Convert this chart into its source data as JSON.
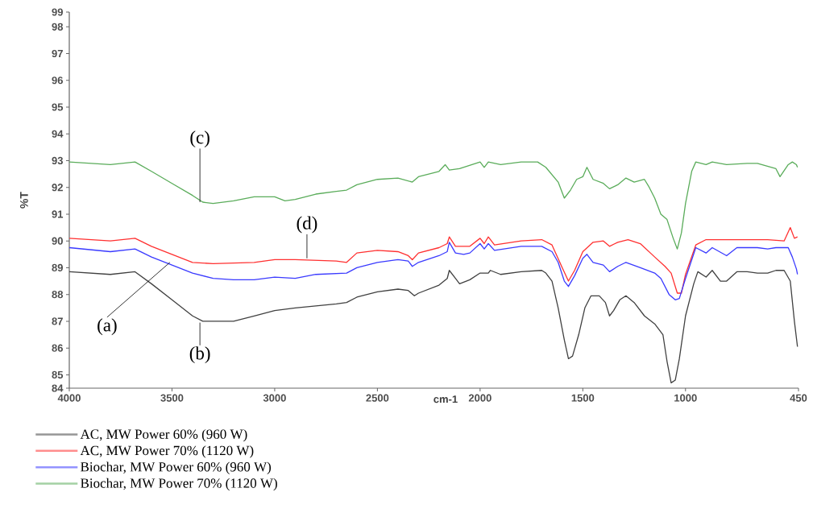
{
  "chart_data": {
    "type": "line",
    "xlabel": "cm-1",
    "ylabel": "%T",
    "xlim": [
      4000,
      450
    ],
    "xticks": [
      4000,
      3500,
      3000,
      2500,
      2000,
      1500,
      1000,
      450
    ],
    "ylim": [
      84.5,
      98.55
    ],
    "yticks": [
      {
        "value": 84.5,
        "label": "84"
      },
      85,
      86,
      87,
      88,
      89,
      90,
      91,
      92,
      93,
      94,
      95,
      96,
      97,
      98,
      {
        "value": 98.55,
        "label": "99"
      }
    ],
    "grid": false,
    "legend": "bottom left",
    "marker": "none",
    "line_style": "solid",
    "annotations": [
      {
        "text": "(a)",
        "x": 3510,
        "y": 89.2
      },
      {
        "text": "(b)",
        "x": 3364,
        "y": 86.95
      },
      {
        "text": "(c)",
        "x": 3364,
        "y": 91.45
      },
      {
        "text": "(d)",
        "x": 2843,
        "y": 89.35
      }
    ],
    "series": [
      {
        "name": "AC, MW Power 60% (960 W)",
        "color": "#404040",
        "x": [
          4000,
          3800,
          3680,
          3600,
          3500,
          3400,
          3350,
          3200,
          3100,
          3000,
          2900,
          2700,
          2650,
          2600,
          2500,
          2400,
          2350,
          2320,
          2300,
          2200,
          2160,
          2150,
          2120,
          2100,
          2050,
          2000,
          1960,
          1950,
          1900,
          1800,
          1700,
          1680,
          1650,
          1620,
          1590,
          1570,
          1550,
          1520,
          1490,
          1460,
          1420,
          1390,
          1370,
          1350,
          1320,
          1290,
          1250,
          1200,
          1150,
          1110,
          1090,
          1070,
          1050,
          1030,
          1000,
          960,
          940,
          900,
          870,
          830,
          800,
          750,
          700,
          650,
          600,
          560,
          520,
          490,
          470,
          455
        ],
        "values": [
          88.85,
          88.75,
          88.85,
          88.4,
          87.8,
          87.2,
          87.0,
          87.0,
          87.2,
          87.4,
          87.5,
          87.65,
          87.7,
          87.9,
          88.1,
          88.2,
          88.15,
          87.95,
          88.05,
          88.35,
          88.6,
          88.9,
          88.6,
          88.4,
          88.55,
          88.8,
          88.8,
          88.9,
          88.75,
          88.85,
          88.9,
          88.8,
          88.5,
          87.5,
          86.3,
          85.6,
          85.7,
          86.5,
          87.5,
          87.95,
          87.95,
          87.7,
          87.2,
          87.4,
          87.8,
          87.95,
          87.7,
          87.2,
          86.9,
          86.5,
          85.5,
          84.7,
          84.8,
          85.6,
          87.2,
          88.4,
          88.85,
          88.65,
          88.9,
          88.5,
          88.5,
          88.85,
          88.85,
          88.8,
          88.8,
          88.9,
          88.9,
          88.5,
          87.0,
          86.05
        ]
      },
      {
        "name": "AC, MW Power 70% (1120 W)",
        "color": "#ff3030",
        "x": [
          4000,
          3800,
          3680,
          3600,
          3500,
          3400,
          3300,
          3100,
          3000,
          2900,
          2700,
          2650,
          2600,
          2500,
          2400,
          2350,
          2330,
          2300,
          2200,
          2160,
          2150,
          2120,
          2050,
          2000,
          1980,
          1960,
          1930,
          1800,
          1700,
          1650,
          1600,
          1570,
          1540,
          1500,
          1450,
          1400,
          1370,
          1330,
          1280,
          1220,
          1150,
          1100,
          1070,
          1040,
          1020,
          1000,
          950,
          900,
          800,
          700,
          600,
          520,
          490,
          470,
          455
        ],
        "values": [
          90.1,
          90.0,
          90.1,
          89.8,
          89.5,
          89.2,
          89.15,
          89.2,
          89.3,
          89.3,
          89.25,
          89.2,
          89.55,
          89.65,
          89.6,
          89.45,
          89.3,
          89.55,
          89.75,
          89.9,
          90.15,
          89.8,
          89.8,
          90.1,
          89.9,
          90.15,
          89.85,
          90.0,
          90.05,
          89.85,
          89.0,
          88.5,
          88.9,
          89.6,
          89.95,
          90.0,
          89.8,
          89.95,
          90.05,
          89.9,
          89.4,
          89.05,
          88.8,
          88.05,
          88.05,
          88.75,
          89.85,
          90.05,
          90.05,
          90.05,
          90.05,
          90.0,
          90.5,
          90.1,
          90.15
        ]
      },
      {
        "name": "Biochar, MW Power 60% (960 W)",
        "color": "#3a3aff",
        "x": [
          4000,
          3800,
          3680,
          3600,
          3500,
          3400,
          3300,
          3200,
          3100,
          3000,
          2900,
          2800,
          2650,
          2600,
          2500,
          2400,
          2350,
          2330,
          2300,
          2200,
          2160,
          2150,
          2120,
          2080,
          2050,
          2000,
          1980,
          1960,
          1930,
          1800,
          1700,
          1650,
          1620,
          1590,
          1570,
          1540,
          1500,
          1480,
          1450,
          1400,
          1370,
          1330,
          1290,
          1220,
          1150,
          1120,
          1080,
          1050,
          1030,
          1000,
          950,
          900,
          870,
          800,
          750,
          650,
          600,
          560,
          500,
          480,
          460,
          455
        ],
        "values": [
          89.75,
          89.6,
          89.7,
          89.4,
          89.1,
          88.8,
          88.6,
          88.55,
          88.55,
          88.65,
          88.6,
          88.75,
          88.8,
          89.0,
          89.2,
          89.3,
          89.25,
          89.05,
          89.2,
          89.45,
          89.6,
          89.95,
          89.55,
          89.5,
          89.55,
          89.9,
          89.7,
          89.9,
          89.65,
          89.8,
          89.8,
          89.6,
          89.2,
          88.5,
          88.3,
          88.7,
          89.35,
          89.5,
          89.2,
          89.1,
          88.85,
          89.05,
          89.2,
          89.0,
          88.8,
          88.6,
          88.0,
          87.8,
          87.85,
          88.6,
          89.75,
          89.55,
          89.75,
          89.45,
          89.75,
          89.75,
          89.7,
          89.75,
          89.75,
          89.4,
          88.95,
          88.75
        ]
      },
      {
        "name": "Biochar, MW Power 70% (1120 W)",
        "color": "#5aac5a",
        "x": [
          4000,
          3800,
          3680,
          3600,
          3500,
          3400,
          3350,
          3300,
          3200,
          3100,
          3000,
          2950,
          2900,
          2800,
          2700,
          2650,
          2600,
          2500,
          2400,
          2330,
          2300,
          2200,
          2170,
          2150,
          2100,
          2000,
          1980,
          1960,
          1900,
          1800,
          1720,
          1680,
          1620,
          1590,
          1560,
          1530,
          1500,
          1480,
          1450,
          1400,
          1370,
          1330,
          1290,
          1250,
          1200,
          1180,
          1150,
          1120,
          1090,
          1060,
          1040,
          1020,
          1000,
          970,
          950,
          900,
          870,
          800,
          700,
          650,
          560,
          540,
          500,
          480,
          460,
          455
        ],
        "values": [
          92.95,
          92.85,
          92.95,
          92.6,
          92.15,
          91.7,
          91.45,
          91.4,
          91.5,
          91.65,
          91.65,
          91.5,
          91.55,
          91.75,
          91.85,
          91.9,
          92.1,
          92.3,
          92.35,
          92.2,
          92.4,
          92.6,
          92.85,
          92.65,
          92.7,
          92.95,
          92.75,
          92.95,
          92.85,
          92.95,
          92.95,
          92.75,
          92.2,
          91.6,
          91.9,
          92.3,
          92.4,
          92.75,
          92.3,
          92.15,
          91.95,
          92.1,
          92.35,
          92.2,
          92.3,
          92.05,
          91.6,
          91.0,
          90.8,
          90.1,
          89.7,
          90.3,
          91.4,
          92.6,
          92.95,
          92.85,
          92.95,
          92.85,
          92.9,
          92.9,
          92.7,
          92.4,
          92.85,
          92.95,
          92.85,
          92.75
        ]
      }
    ]
  }
}
